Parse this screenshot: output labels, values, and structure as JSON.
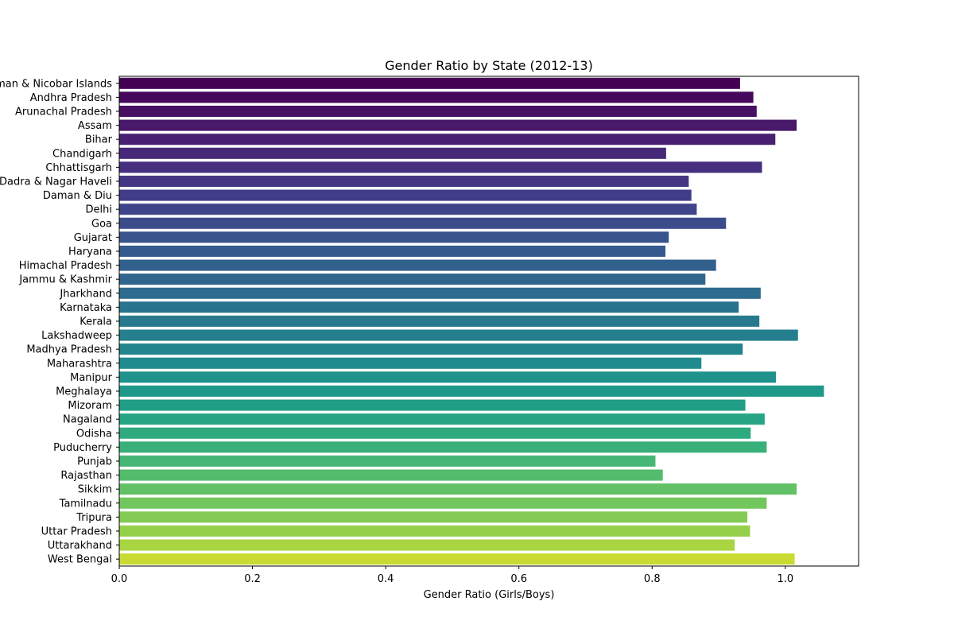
{
  "chart_data": {
    "type": "bar",
    "orientation": "horizontal",
    "title": "Gender Ratio by State (2012-13)",
    "xlabel": "Gender Ratio (Girls/Boys)",
    "ylabel": "",
    "xlim": [
      0,
      1.11
    ],
    "xticks": [
      "0.0",
      "0.2",
      "0.4",
      "0.6",
      "0.8",
      "1.0"
    ],
    "grid": false,
    "colormap": "viridis",
    "categories": [
      "Andaman & Nicobar Islands",
      "Andhra Pradesh",
      "Arunachal Pradesh",
      "Assam",
      "Bihar",
      "Chandigarh",
      "Chhattisgarh",
      "Dadra & Nagar Haveli",
      "Daman & Diu",
      "Delhi",
      "Goa",
      "Gujarat",
      "Haryana",
      "Himachal Pradesh",
      "Jammu & Kashmir",
      "Jharkhand",
      "Karnataka",
      "Kerala",
      "Lakshadweep",
      "Madhya Pradesh",
      "Maharashtra",
      "Manipur",
      "Meghalaya",
      "Mizoram",
      "Nagaland",
      "Odisha",
      "Puducherry",
      "Punjab",
      "Rajasthan",
      "Sikkim",
      "Tamilnadu",
      "Tripura",
      "Uttar Pradesh",
      "Uttarakhand",
      "West Bengal"
    ],
    "values": [
      0.932,
      0.952,
      0.957,
      1.017,
      0.985,
      0.821,
      0.965,
      0.855,
      0.859,
      0.867,
      0.911,
      0.825,
      0.82,
      0.896,
      0.88,
      0.963,
      0.93,
      0.961,
      1.019,
      0.936,
      0.874,
      0.986,
      1.058,
      0.94,
      0.969,
      0.948,
      0.972,
      0.805,
      0.816,
      1.017,
      0.972,
      0.943,
      0.947,
      0.924,
      1.014
    ],
    "colors": [
      "#440154",
      "#46085c",
      "#471063",
      "#48186a",
      "#482071",
      "#472777",
      "#462f7e",
      "#443683",
      "#423d88",
      "#3f458a",
      "#3c4c8b",
      "#39538c",
      "#35598c",
      "#32608d",
      "#30668d",
      "#2d6c8e",
      "#2a738e",
      "#28798e",
      "#257f8e",
      "#22858d",
      "#208b8c",
      "#1f928b",
      "#1e9889",
      "#219e86",
      "#26a483",
      "#2eaa7f",
      "#39b07a",
      "#46b674",
      "#54bc6d",
      "#62c166",
      "#72c65e",
      "#83cb55",
      "#95d04b",
      "#a8d541",
      "#c9da32"
    ]
  }
}
